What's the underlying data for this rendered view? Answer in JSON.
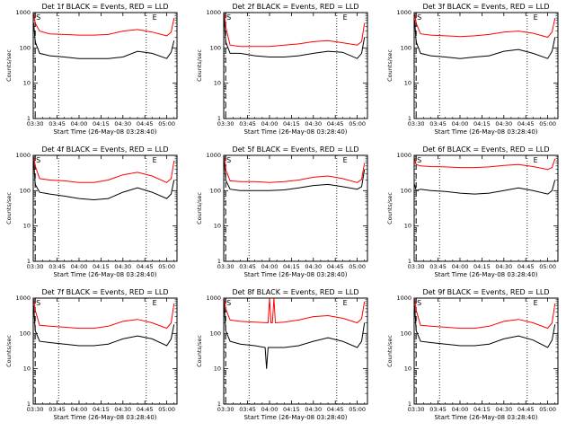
{
  "figure": {
    "ylabel": "Counts/sec",
    "xlabel": "Start Time (26-May-08 03:28:40)",
    "x_ticks": [
      "03:30",
      "03:45",
      "04:00",
      "04:15",
      "04:30",
      "04:45",
      "05:00"
    ],
    "y_ticks": [
      "1",
      "10",
      "100",
      "1000"
    ],
    "marker_labels": [
      "S",
      "E"
    ],
    "colors": {
      "events": "#000000",
      "lld": "#ff0000",
      "axes": "#000000",
      "background": "#ffffff"
    }
  },
  "chart_data": [
    {
      "type": "line",
      "title": "Det 1f BLACK = Events, RED = LLD",
      "xlabel": "Start Time (26-May-08 03:28:40)",
      "ylabel": "Counts/sec",
      "x_range": [
        "03:28:40",
        "05:07:00"
      ],
      "ylim": [
        1,
        1000
      ],
      "y_scale": "log",
      "markers": {
        "S": "03:30",
        "E": "04:52"
      },
      "dotted_lines": [
        "03:46",
        "04:46"
      ],
      "series": [
        {
          "name": "Events",
          "color": "#000000",
          "x": [
            "03:29",
            "03:30",
            "03:33",
            "03:40",
            "03:50",
            "04:00",
            "04:10",
            "04:20",
            "04:30",
            "04:40",
            "04:50",
            "05:00",
            "05:03",
            "05:05"
          ],
          "values": [
            500,
            150,
            70,
            60,
            55,
            50,
            50,
            50,
            55,
            80,
            70,
            50,
            75,
            160
          ]
        },
        {
          "name": "LLD",
          "color": "#ff0000",
          "x": [
            "03:29",
            "03:30",
            "03:33",
            "03:40",
            "03:50",
            "04:00",
            "04:10",
            "04:20",
            "04:30",
            "04:40",
            "04:50",
            "05:00",
            "05:03",
            "05:05"
          ],
          "values": [
            900,
            500,
            300,
            250,
            240,
            230,
            230,
            240,
            300,
            330,
            280,
            220,
            280,
            700
          ]
        }
      ]
    },
    {
      "type": "line",
      "title": "Det 2f BLACK = Events, RED = LLD",
      "xlabel": "Start Time (26-May-08 03:28:40)",
      "ylabel": "Counts/sec",
      "x_range": [
        "03:28:40",
        "05:07:00"
      ],
      "ylim": [
        1,
        1000
      ],
      "y_scale": "log",
      "markers": {
        "S": "03:30",
        "E": "04:52"
      },
      "dotted_lines": [
        "03:46",
        "04:46"
      ],
      "series": [
        {
          "name": "Events",
          "color": "#000000",
          "x": [
            "03:29",
            "03:30",
            "03:33",
            "03:40",
            "03:50",
            "04:00",
            "04:10",
            "04:20",
            "04:30",
            "04:40",
            "04:50",
            "05:00",
            "05:03",
            "05:05"
          ],
          "values": [
            700,
            150,
            70,
            70,
            60,
            55,
            55,
            60,
            70,
            80,
            75,
            50,
            70,
            200
          ]
        },
        {
          "name": "LLD",
          "color": "#ff0000",
          "x": [
            "03:29",
            "03:30",
            "03:33",
            "03:40",
            "03:50",
            "04:00",
            "04:10",
            "04:20",
            "04:30",
            "04:40",
            "04:50",
            "05:00",
            "05:03",
            "05:05"
          ],
          "values": [
            900,
            400,
            120,
            110,
            110,
            110,
            120,
            130,
            150,
            160,
            140,
            120,
            150,
            500
          ]
        }
      ]
    },
    {
      "type": "line",
      "title": "Det 3f BLACK = Events, RED = LLD",
      "xlabel": "Start Time (26-May-08 03:28:40)",
      "ylabel": "Counts/sec",
      "x_range": [
        "03:28:40",
        "05:07:00"
      ],
      "ylim": [
        1,
        1000
      ],
      "y_scale": "log",
      "markers": {
        "S": "03:30",
        "E": "04:52"
      },
      "dotted_lines": [
        "03:46",
        "04:46"
      ],
      "series": [
        {
          "name": "Events",
          "color": "#000000",
          "x": [
            "03:29",
            "03:30",
            "03:33",
            "03:40",
            "03:50",
            "04:00",
            "04:10",
            "04:20",
            "04:30",
            "04:40",
            "04:50",
            "05:00",
            "05:03",
            "05:05"
          ],
          "values": [
            600,
            150,
            70,
            60,
            55,
            50,
            55,
            60,
            80,
            90,
            70,
            50,
            80,
            200
          ]
        },
        {
          "name": "LLD",
          "color": "#ff0000",
          "x": [
            "03:29",
            "03:30",
            "03:33",
            "03:40",
            "03:50",
            "04:00",
            "04:10",
            "04:20",
            "04:30",
            "04:40",
            "04:50",
            "05:00",
            "05:03",
            "05:05"
          ],
          "values": [
            900,
            500,
            250,
            230,
            220,
            210,
            220,
            240,
            280,
            300,
            260,
            200,
            280,
            700
          ]
        }
      ]
    },
    {
      "type": "line",
      "title": "Det 4f BLACK = Events, RED = LLD",
      "xlabel": "Start Time (26-May-08 03:28:40)",
      "ylabel": "Counts/sec",
      "x_range": [
        "03:28:40",
        "05:07:00"
      ],
      "ylim": [
        1,
        1000
      ],
      "y_scale": "log",
      "markers": {
        "S": "03:30",
        "E": "04:52"
      },
      "dotted_lines": [
        "03:46",
        "04:46"
      ],
      "series": [
        {
          "name": "Events",
          "color": "#000000",
          "x": [
            "03:29",
            "03:30",
            "03:33",
            "03:40",
            "03:50",
            "04:00",
            "04:10",
            "04:20",
            "04:30",
            "04:40",
            "04:50",
            "05:00",
            "05:03",
            "05:05"
          ],
          "values": [
            700,
            150,
            90,
            80,
            70,
            60,
            55,
            60,
            90,
            120,
            90,
            60,
            80,
            200
          ]
        },
        {
          "name": "LLD",
          "color": "#ff0000",
          "x": [
            "03:29",
            "03:30",
            "03:33",
            "03:40",
            "03:50",
            "04:00",
            "04:10",
            "04:20",
            "04:30",
            "04:40",
            "04:50",
            "05:00",
            "05:03",
            "05:05"
          ],
          "values": [
            900,
            500,
            220,
            200,
            190,
            170,
            170,
            200,
            280,
            330,
            260,
            170,
            220,
            700
          ]
        }
      ]
    },
    {
      "type": "line",
      "title": "Det 5f BLACK = Events, RED = LLD",
      "xlabel": "Start Time (26-May-08 03:28:40)",
      "ylabel": "Counts/sec",
      "x_range": [
        "03:28:40",
        "05:07:00"
      ],
      "ylim": [
        1,
        1000
      ],
      "y_scale": "log",
      "markers": {
        "S": "03:30",
        "E": "04:52"
      },
      "dotted_lines": [
        "03:46",
        "04:46"
      ],
      "series": [
        {
          "name": "Events",
          "color": "#000000",
          "x": [
            "03:29",
            "03:30",
            "03:33",
            "03:40",
            "03:50",
            "04:00",
            "04:10",
            "04:20",
            "04:30",
            "04:40",
            "04:50",
            "05:00",
            "05:03",
            "05:05"
          ],
          "values": [
            800,
            200,
            110,
            100,
            100,
            100,
            105,
            120,
            140,
            150,
            130,
            110,
            130,
            400
          ]
        },
        {
          "name": "LLD",
          "color": "#ff0000",
          "x": [
            "03:29",
            "03:30",
            "03:33",
            "03:40",
            "03:50",
            "04:00",
            "04:10",
            "04:20",
            "04:30",
            "04:40",
            "04:50",
            "05:00",
            "05:03",
            "05:05"
          ],
          "values": [
            900,
            400,
            190,
            180,
            180,
            170,
            180,
            200,
            240,
            260,
            220,
            170,
            210,
            600
          ]
        }
      ]
    },
    {
      "type": "line",
      "title": "Det 6f BLACK = Events, RED = LLD",
      "xlabel": "Start Time (26-May-08 03:28:40)",
      "ylabel": "Counts/sec",
      "x_range": [
        "03:28:40",
        "05:07:00"
      ],
      "ylim": [
        1,
        1000
      ],
      "y_scale": "log",
      "markers": {
        "S": "03:30",
        "E": "04:52"
      },
      "dotted_lines": [
        "03:46",
        "04:46"
      ],
      "series": [
        {
          "name": "Events",
          "color": "#000000",
          "x": [
            "03:29",
            "03:30",
            "03:33",
            "03:40",
            "03:50",
            "04:00",
            "04:10",
            "04:20",
            "04:30",
            "04:40",
            "04:50",
            "05:00",
            "05:03",
            "05:05"
          ],
          "values": [
            150,
            100,
            110,
            100,
            95,
            85,
            80,
            85,
            100,
            120,
            100,
            80,
            100,
            200
          ]
        },
        {
          "name": "LLD",
          "color": "#ff0000",
          "x": [
            "03:29",
            "03:30",
            "03:33",
            "03:40",
            "03:50",
            "04:00",
            "04:10",
            "04:20",
            "04:30",
            "04:40",
            "04:50",
            "05:00",
            "05:03",
            "05:05"
          ],
          "values": [
            800,
            550,
            500,
            480,
            470,
            450,
            450,
            470,
            520,
            550,
            480,
            400,
            450,
            800
          ]
        }
      ]
    },
    {
      "type": "line",
      "title": "Det 7f BLACK = Events, RED = LLD",
      "xlabel": "Start Time (26-May-08 03:28:40)",
      "ylabel": "Counts/sec",
      "x_range": [
        "03:28:40",
        "05:07:00"
      ],
      "ylim": [
        1,
        1000
      ],
      "y_scale": "log",
      "markers": {
        "S": "03:30",
        "E": "04:52"
      },
      "dotted_lines": [
        "03:46",
        "04:46"
      ],
      "series": [
        {
          "name": "Events",
          "color": "#000000",
          "x": [
            "03:29",
            "03:30",
            "03:33",
            "03:40",
            "03:50",
            "04:00",
            "04:10",
            "04:20",
            "04:30",
            "04:40",
            "04:50",
            "05:00",
            "05:03",
            "05:05"
          ],
          "values": [
            600,
            120,
            60,
            55,
            50,
            45,
            45,
            50,
            70,
            85,
            70,
            45,
            70,
            180
          ]
        },
        {
          "name": "LLD",
          "color": "#ff0000",
          "x": [
            "03:29",
            "03:30",
            "03:33",
            "03:40",
            "03:50",
            "04:00",
            "04:10",
            "04:20",
            "04:30",
            "04:40",
            "04:50",
            "05:00",
            "05:03",
            "05:05"
          ],
          "values": [
            900,
            450,
            170,
            160,
            150,
            140,
            140,
            160,
            220,
            250,
            200,
            140,
            200,
            700
          ]
        }
      ]
    },
    {
      "type": "line",
      "title": "Det 8f BLACK = Events, RED = LLD",
      "xlabel": "Start Time (26-May-08 03:28:40)",
      "ylabel": "Counts/sec",
      "x_range": [
        "03:28:40",
        "05:07:00"
      ],
      "ylim": [
        1,
        1000
      ],
      "y_scale": "log",
      "markers": {
        "S": "03:30",
        "E": "04:52"
      },
      "dotted_lines": [
        "03:46",
        "04:46"
      ],
      "series": [
        {
          "name": "Events",
          "color": "#000000",
          "x": [
            "03:29",
            "03:30",
            "03:33",
            "03:40",
            "03:50",
            "03:57",
            "03:58",
            "03:59",
            "04:10",
            "04:20",
            "04:30",
            "04:40",
            "04:50",
            "05:00",
            "05:03",
            "05:05"
          ],
          "values": [
            700,
            120,
            60,
            50,
            45,
            40,
            10,
            40,
            40,
            45,
            60,
            75,
            60,
            40,
            60,
            200
          ]
        },
        {
          "name": "LLD",
          "color": "#ff0000",
          "x": [
            "03:29",
            "03:30",
            "03:33",
            "03:40",
            "03:50",
            "03:59",
            "04:00",
            "04:01",
            "04:02",
            "04:03",
            "04:04",
            "04:10",
            "04:20",
            "04:30",
            "04:40",
            "04:50",
            "05:00",
            "05:03",
            "05:05"
          ],
          "values": [
            900,
            500,
            240,
            220,
            210,
            200,
            1000,
            200,
            200,
            1000,
            200,
            210,
            240,
            300,
            320,
            270,
            200,
            260,
            800
          ]
        }
      ]
    },
    {
      "type": "line",
      "title": "Det 9f BLACK = Events, RED = LLD",
      "xlabel": "Start Time (26-May-08 03:28:40)",
      "ylabel": "Counts/sec",
      "x_range": [
        "03:28:40",
        "05:07:00"
      ],
      "ylim": [
        1,
        1000
      ],
      "y_scale": "log",
      "markers": {
        "S": "03:30",
        "E": "04:52"
      },
      "dotted_lines": [
        "03:46",
        "04:46"
      ],
      "series": [
        {
          "name": "Events",
          "color": "#000000",
          "x": [
            "03:29",
            "03:30",
            "03:33",
            "03:40",
            "03:50",
            "04:00",
            "04:10",
            "04:20",
            "04:30",
            "04:40",
            "04:50",
            "05:00",
            "05:03",
            "05:05"
          ],
          "values": [
            600,
            120,
            60,
            55,
            50,
            45,
            45,
            50,
            70,
            85,
            65,
            40,
            65,
            180
          ]
        },
        {
          "name": "LLD",
          "color": "#ff0000",
          "x": [
            "03:29",
            "03:30",
            "03:33",
            "03:40",
            "03:50",
            "04:00",
            "04:10",
            "04:20",
            "04:30",
            "04:40",
            "04:50",
            "05:00",
            "05:03",
            "05:05"
          ],
          "values": [
            900,
            450,
            170,
            160,
            150,
            140,
            140,
            160,
            220,
            250,
            200,
            140,
            200,
            700
          ]
        }
      ]
    }
  ]
}
